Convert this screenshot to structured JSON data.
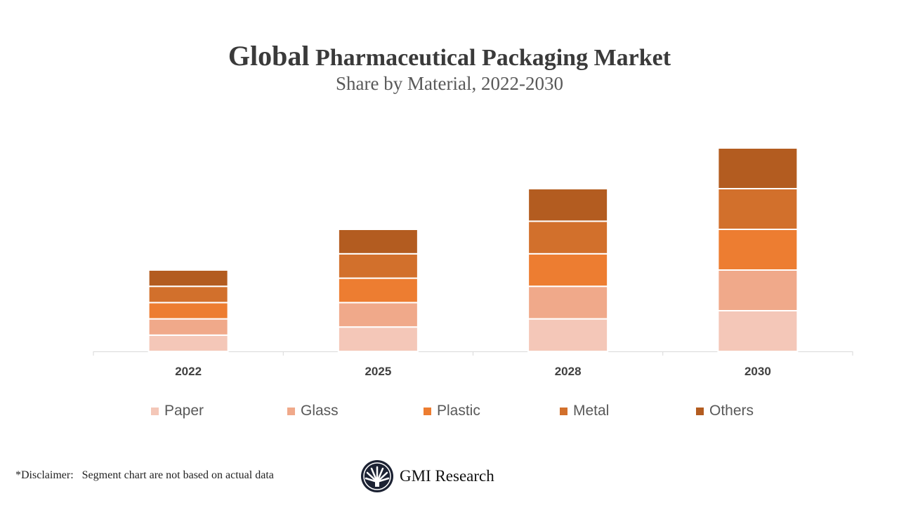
{
  "chart_data": {
    "type": "bar",
    "stacked": true,
    "title_first_word": "Global",
    "title_rest": "Pharmaceutical Packaging Market",
    "subtitle": "Share by Material, 2022-2030",
    "categories": [
      "2022",
      "2025",
      "2028",
      "2030"
    ],
    "series": [
      {
        "name": "Paper",
        "color": "#f4c7b8",
        "values": [
          4,
          6,
          8,
          10
        ]
      },
      {
        "name": "Glass",
        "color": "#f0a98a",
        "values": [
          4,
          6,
          8,
          10
        ]
      },
      {
        "name": "Plastic",
        "color": "#ed7d31",
        "values": [
          4,
          6,
          8,
          10
        ]
      },
      {
        "name": "Metal",
        "color": "#d2702c",
        "values": [
          4,
          6,
          8,
          10
        ]
      },
      {
        "name": "Others",
        "color": "#b35c20",
        "values": [
          4,
          6,
          8,
          10
        ]
      }
    ],
    "ylim": [
      0,
      50
    ],
    "grid": false,
    "y_axis_shown": false,
    "legend_position": "bottom"
  },
  "footer": {
    "disclaimer": "*Disclaimer:   Segment chart are not based on actual data",
    "logo_text": "GMI Research"
  }
}
